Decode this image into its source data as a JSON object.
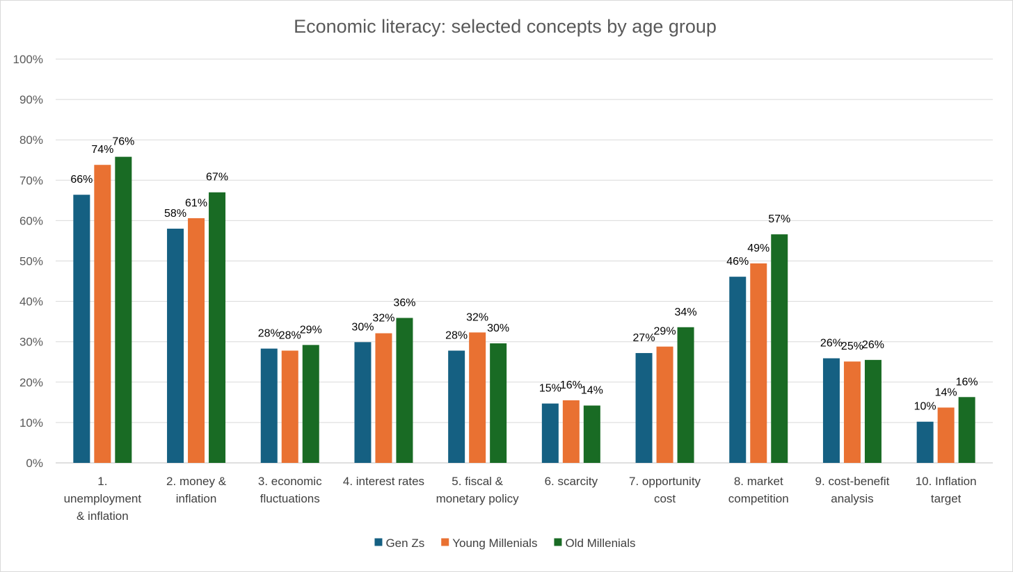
{
  "chart_data": {
    "type": "bar",
    "title": "Economic literacy: selected concepts by age group",
    "xlabel": "",
    "ylabel": "",
    "ylim": [
      0,
      100
    ],
    "yticks": [
      "0%",
      "10%",
      "20%",
      "30%",
      "40%",
      "50%",
      "60%",
      "70%",
      "80%",
      "90%",
      "100%"
    ],
    "grid": true,
    "legend_position": "bottom",
    "categories": [
      [
        "1.",
        "unemployment",
        "& inflation"
      ],
      [
        "2. money &",
        "inflation"
      ],
      [
        "3. economic",
        "fluctuations"
      ],
      [
        "4. interest rates"
      ],
      [
        "5.  fiscal &",
        "monetary policy"
      ],
      [
        "6. scarcity"
      ],
      [
        "7. opportunity",
        "cost"
      ],
      [
        "8. market",
        "competition"
      ],
      [
        "9. cost-benefit",
        "analysis"
      ],
      [
        "10. Inflation",
        "target"
      ]
    ],
    "series": [
      {
        "name": "Gen Zs",
        "color": "#156082",
        "values": [
          66.4,
          58.0,
          28.3,
          29.9,
          27.8,
          14.7,
          27.2,
          46.1,
          25.9,
          10.2
        ],
        "labels": [
          "66%",
          "58%",
          "28%",
          "30%",
          "28%",
          "15%",
          "27%",
          "46%",
          "26%",
          "10%"
        ]
      },
      {
        "name": "Young Millenials",
        "color": "#E97132",
        "values": [
          73.8,
          60.6,
          27.8,
          32.1,
          32.3,
          15.5,
          28.8,
          49.4,
          25.1,
          13.7
        ],
        "labels": [
          "74%",
          "61%",
          "28%",
          "32%",
          "32%",
          "16%",
          "29%",
          "49%",
          "25%",
          "14%"
        ]
      },
      {
        "name": "Old Millenials",
        "color": "#196B24",
        "values": [
          75.8,
          67.0,
          29.2,
          35.9,
          29.6,
          14.2,
          33.6,
          56.6,
          25.5,
          16.3
        ],
        "labels": [
          "76%",
          "67%",
          "29%",
          "36%",
          "30%",
          "14%",
          "34%",
          "57%",
          "26%",
          "16%"
        ]
      }
    ]
  }
}
